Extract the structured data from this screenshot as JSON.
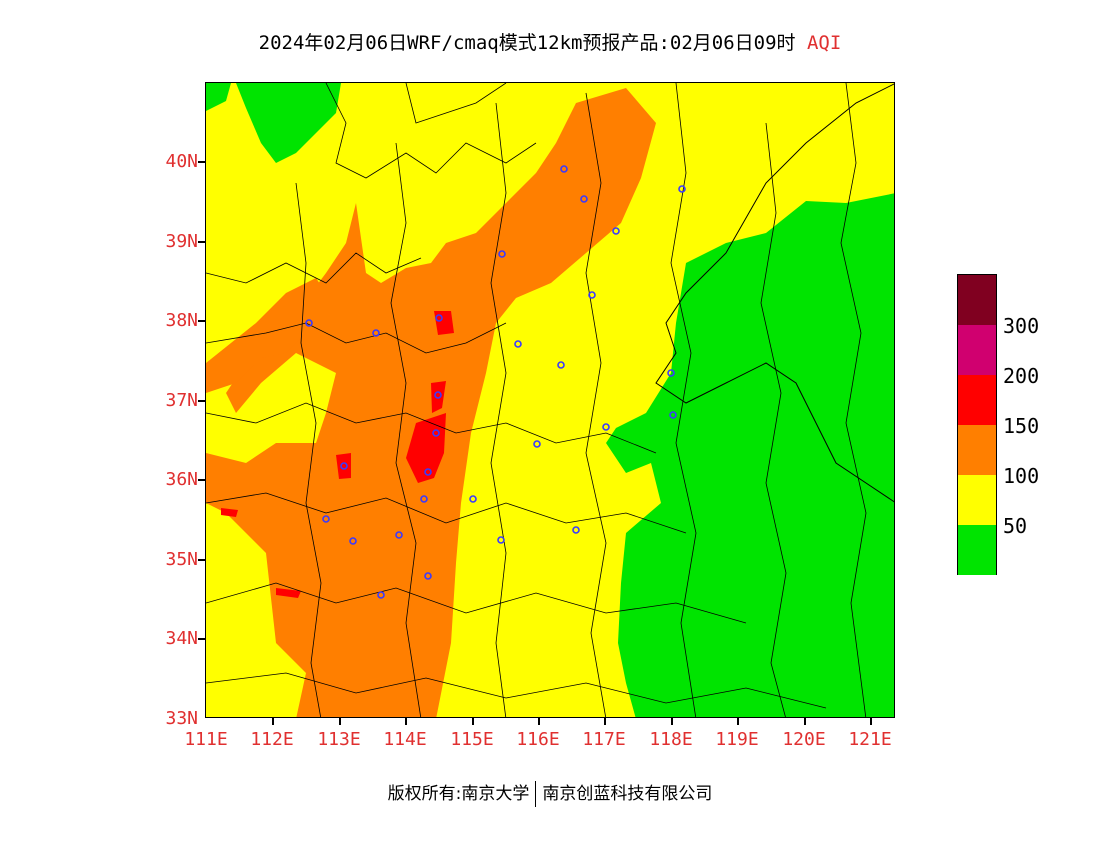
{
  "title": {
    "main": "2024年02月06日WRF/cmaq模式12km预报产品:02月06日09时",
    "product": "AQI"
  },
  "axes": {
    "lat_labels": [
      "40N",
      "39N",
      "38N",
      "37N",
      "36N",
      "35N",
      "34N",
      "33N"
    ],
    "lon_labels": [
      "111E",
      "112E",
      "113E",
      "114E",
      "115E",
      "116E",
      "117E",
      "118E",
      "119E",
      "120E",
      "121E"
    ]
  },
  "legend": {
    "labels": [
      "300",
      "200",
      "150",
      "100",
      "50"
    ],
    "colors": [
      "#800020",
      "#d0006f",
      "#ff0000",
      "#ff7f00",
      "#ffff00",
      "#00e400"
    ]
  },
  "footer": {
    "copyright": "版权所有:南京大学",
    "company": "南京创蓝科技有限公司"
  }
}
